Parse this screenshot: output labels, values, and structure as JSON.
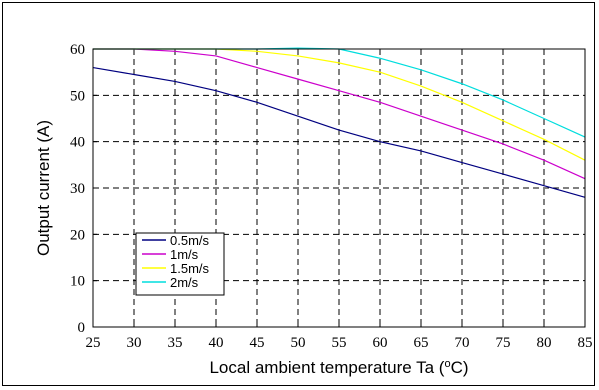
{
  "chart_data": {
    "type": "line",
    "title": "",
    "xlabel": "Local ambient temperature Ta (",
    "xlabel_sup": "o",
    "xlabel_tail": "C)",
    "ylabel": "Output current (A)",
    "xlim": [
      25,
      85
    ],
    "ylim": [
      0,
      60
    ],
    "xticks": [
      25,
      30,
      35,
      40,
      45,
      50,
      55,
      60,
      65,
      70,
      75,
      80,
      85
    ],
    "yticks": [
      0,
      10,
      20,
      30,
      40,
      50,
      60
    ],
    "grid": true,
    "legend_position": "bottom-left",
    "series": [
      {
        "name": "0.5m/s",
        "color": "#000080",
        "x": [
          25,
          30,
          35,
          40,
          45,
          50,
          55,
          60,
          65,
          70,
          75,
          80,
          85
        ],
        "y": [
          56,
          54.5,
          53,
          51,
          48.5,
          45.5,
          42.5,
          40,
          38,
          35.5,
          33,
          30.5,
          28
        ]
      },
      {
        "name": "1m/s",
        "color": "#cc00cc",
        "x": [
          25,
          30,
          35,
          40,
          45,
          50,
          55,
          60,
          65,
          70,
          75,
          80,
          85
        ],
        "y": [
          60,
          60,
          59.5,
          58.5,
          56,
          53.5,
          51,
          48.5,
          45.5,
          42.5,
          39.5,
          36,
          32
        ]
      },
      {
        "name": "1.5m/s",
        "color": "#ffff00",
        "x": [
          25,
          30,
          35,
          40,
          45,
          50,
          55,
          60,
          65,
          70,
          75,
          80,
          85
        ],
        "y": [
          60,
          60,
          60,
          60,
          59.5,
          58.5,
          57,
          55,
          52,
          48.5,
          44.5,
          40.5,
          36
        ]
      },
      {
        "name": "2m/s",
        "color": "#00dddd",
        "x": [
          25,
          30,
          35,
          40,
          45,
          50,
          55,
          60,
          65,
          70,
          75,
          80,
          85
        ],
        "y": [
          60,
          60,
          60,
          60,
          60,
          60.2,
          60,
          58,
          55.5,
          52.5,
          49,
          45,
          41
        ]
      }
    ]
  }
}
